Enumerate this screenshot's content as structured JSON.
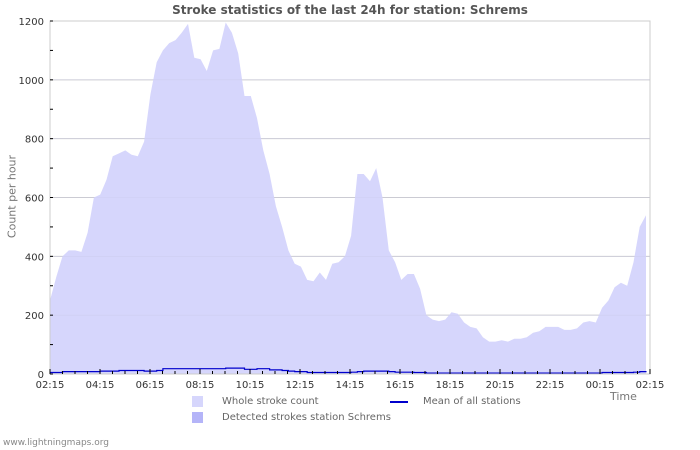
{
  "title": "Stroke statistics of the last 24h for station: Schrems",
  "footer": "www.lightningmaps.org",
  "colors": {
    "whole_stroke_fill": "#d6d6fc",
    "detected_fill": "#b4b4f8",
    "mean_line": "#0000cc",
    "grid": "#cccccc",
    "axis_text": "#333333"
  },
  "legend": {
    "whole": "Whole stroke count",
    "detected": "Detected strokes station Schrems",
    "mean": "Mean of all stations"
  },
  "chart_data": {
    "type": "area",
    "title": "Stroke statistics of the last 24h for station: Schrems",
    "xlabel": "Time",
    "ylabel": "Count per hour",
    "ylim": [
      0,
      1200
    ],
    "yticks": [
      0,
      200,
      400,
      600,
      800,
      1000,
      1200
    ],
    "xtick_labels": [
      "02:15",
      "04:15",
      "06:15",
      "08:15",
      "10:15",
      "12:15",
      "14:15",
      "16:15",
      "18:15",
      "20:15",
      "22:15",
      "00:15",
      "02:15"
    ],
    "grid": true,
    "legend_position": "bottom",
    "x_step_minutes": 15,
    "series": [
      {
        "name": "Whole stroke count",
        "type": "area",
        "values": [
          250,
          330,
          400,
          420,
          420,
          415,
          480,
          600,
          610,
          660,
          740,
          750,
          760,
          745,
          740,
          790,
          950,
          1060,
          1100,
          1125,
          1135,
          1160,
          1190,
          1075,
          1070,
          1030,
          1100,
          1105,
          1195,
          1160,
          1090,
          945,
          945,
          870,
          760,
          680,
          570,
          500,
          420,
          375,
          365,
          320,
          315,
          345,
          320,
          375,
          380,
          400,
          470,
          680,
          680,
          655,
          700,
          600,
          420,
          380,
          320,
          340,
          340,
          290,
          200,
          185,
          180,
          185,
          210,
          205,
          175,
          160,
          155,
          125,
          110,
          110,
          115,
          110,
          120,
          120,
          125,
          140,
          145,
          160,
          160,
          160,
          150,
          150,
          155,
          175,
          180,
          175,
          225,
          250,
          295,
          310,
          300,
          380,
          500,
          540
        ]
      },
      {
        "name": "Detected strokes station Schrems",
        "type": "area",
        "values": [
          0,
          0,
          0,
          0,
          0,
          0,
          0,
          0,
          0,
          0,
          0,
          0,
          0,
          0,
          0,
          0,
          0,
          0,
          0,
          0,
          0,
          0,
          0,
          0,
          0,
          0,
          0,
          0,
          0,
          0,
          0,
          0,
          0,
          0,
          0,
          0,
          0,
          0,
          0,
          0,
          0,
          0,
          0,
          0,
          0,
          0,
          0,
          0,
          0,
          0,
          0,
          0,
          0,
          0,
          0,
          0,
          0,
          0,
          0,
          0,
          0,
          0,
          0,
          0,
          0,
          0,
          0,
          0,
          0,
          0,
          0,
          0,
          0,
          0,
          0,
          0,
          0,
          0,
          0,
          0,
          0,
          0,
          0,
          0,
          0,
          0,
          0,
          0,
          0,
          0,
          0,
          0,
          0,
          0,
          0,
          0
        ]
      },
      {
        "name": "Mean of all stations",
        "type": "line",
        "values": [
          5,
          5,
          8,
          8,
          8,
          8,
          8,
          8,
          10,
          10,
          10,
          12,
          12,
          12,
          12,
          10,
          10,
          12,
          18,
          18,
          18,
          18,
          18,
          18,
          18,
          18,
          18,
          18,
          20,
          20,
          20,
          16,
          16,
          18,
          18,
          14,
          14,
          12,
          10,
          8,
          8,
          5,
          5,
          5,
          5,
          5,
          5,
          5,
          6,
          8,
          10,
          10,
          10,
          10,
          8,
          6,
          6,
          6,
          5,
          5,
          3,
          3,
          3,
          3,
          3,
          3,
          3,
          3,
          3,
          3,
          3,
          3,
          3,
          3,
          3,
          3,
          3,
          3,
          3,
          3,
          3,
          3,
          3,
          3,
          3,
          3,
          3,
          3,
          5,
          5,
          5,
          5,
          5,
          6,
          8,
          10
        ]
      }
    ]
  }
}
